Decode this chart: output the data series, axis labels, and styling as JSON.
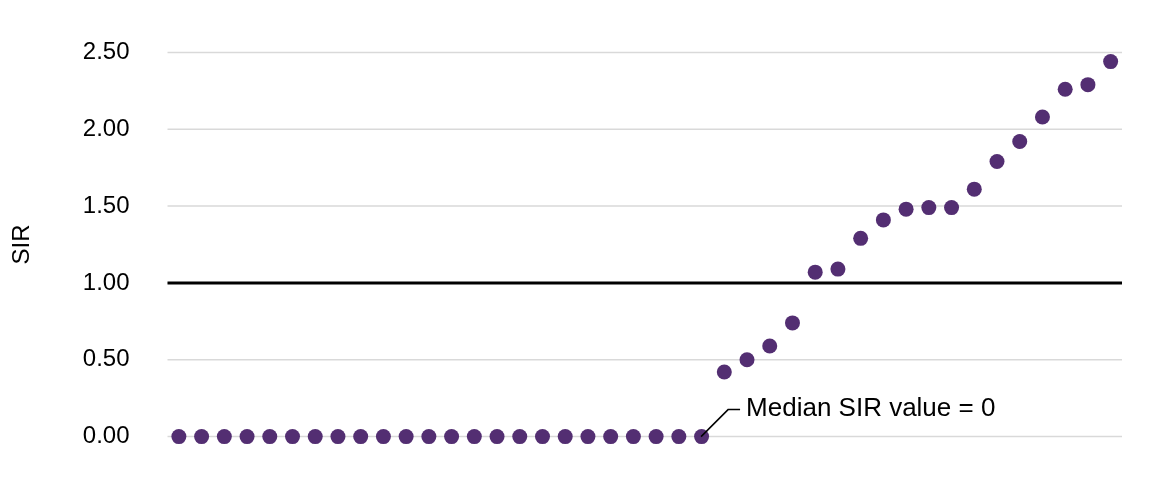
{
  "chart_data": {
    "type": "scatter",
    "ylabel": "SIR",
    "categories": [
      null,
      null,
      null,
      null,
      null,
      null,
      null,
      null,
      null,
      null,
      null,
      null,
      null,
      null,
      null,
      null,
      null,
      null,
      null,
      null,
      null,
      null,
      null,
      null,
      null,
      null,
      null,
      null,
      null,
      null,
      null,
      null,
      null,
      null,
      null,
      null,
      null,
      null,
      null,
      null,
      null,
      null
    ],
    "values": [
      0,
      0,
      0,
      0,
      0,
      0,
      0,
      0,
      0,
      0,
      0,
      0,
      0,
      0,
      0,
      0,
      0,
      0,
      0,
      0,
      0,
      0,
      0,
      0,
      0.42,
      0.5,
      0.59,
      0.74,
      1.07,
      1.09,
      1.29,
      1.41,
      1.48,
      1.49,
      1.49,
      1.61,
      1.79,
      1.92,
      2.08,
      2.26,
      2.29,
      2.44
    ],
    "color": "#532e72",
    "marker": "circle",
    "ylim": [
      0,
      2.5
    ],
    "yticks": [
      {
        "value": 0,
        "label": "0.00"
      },
      {
        "value": 0.5,
        "label": "0.50"
      },
      {
        "value": 1,
        "label": "1.00"
      },
      {
        "value": 1.5,
        "label": "1.50"
      },
      {
        "value": 2,
        "label": "2.00"
      },
      {
        "value": 2.5,
        "label": "2.50"
      }
    ],
    "grid": "y",
    "legend": false,
    "tick_labels": "y",
    "ref_lines": [
      {
        "axis": "y",
        "value": 1,
        "color": "#000000"
      }
    ],
    "annotations": [
      "Median SIR value = 0"
    ]
  }
}
